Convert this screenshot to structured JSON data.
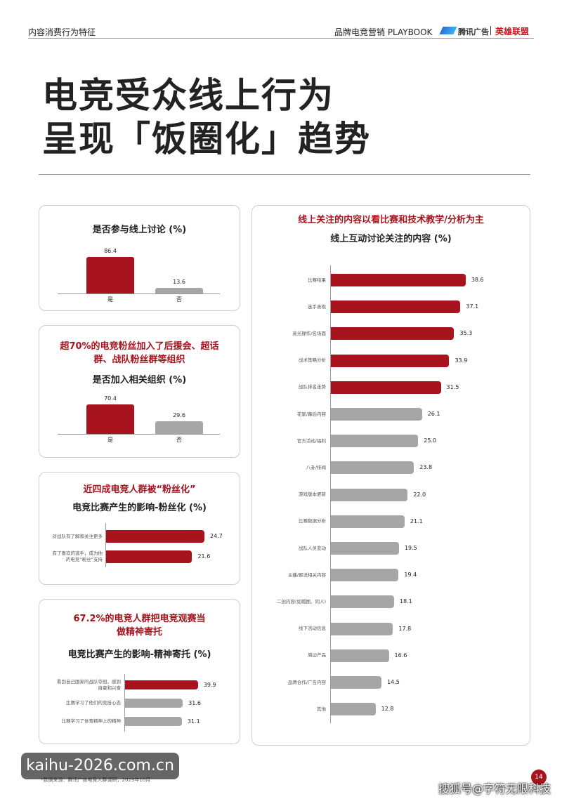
{
  "header": {
    "section": "内容消费行为特征",
    "brand": "品牌电竞营销 PLAYBOOK",
    "logo1": "腾讯广告",
    "logo2": "英雄联盟"
  },
  "title": [
    "电竞受众线上行为",
    "呈现「饭圈化」趋势"
  ],
  "chart_data": [
    {
      "type": "bar",
      "title": "是否参与线上讨论 (%)",
      "categories": [
        "是",
        "否"
      ],
      "values": [
        86.4,
        13.6
      ],
      "colors": [
        "#a8141e",
        "#a6a6a6"
      ]
    },
    {
      "type": "bar",
      "headline": "超70%的电竞粉丝加入了后援会、超话群、战队粉丝群等组织",
      "title": "是否加入相关组织 (%)",
      "categories": [
        "是",
        "否"
      ],
      "values": [
        70.4,
        29.6
      ],
      "colors": [
        "#a8141e",
        "#a6a6a6"
      ]
    },
    {
      "type": "barh",
      "headline": "近四成电竞人群被“粉丝化”",
      "title": "电竞比赛产生的影响-粉丝化 (%)",
      "categories": [
        "对战队有了解和关注更多",
        "有了喜欢的选手，成为他的电竞“粉丝”支持"
      ],
      "values": [
        24.7,
        21.6
      ],
      "colors": [
        "#a8141e",
        "#a8141e"
      ]
    },
    {
      "type": "barh",
      "headline": "67.2%的电竞人群把电竞观赛当做精神寄托",
      "title": "电竞比赛产生的影响-精神寄托 (%)",
      "categories": [
        "看到自己国家的战队夺冠，感到自豪和兴奋",
        "比赛学习了他们的竞技心态",
        "比赛学习了体育精神上的精神"
      ],
      "values": [
        39.9,
        31.6,
        31.1
      ],
      "colors": [
        "#a8141e",
        "#a6a6a6",
        "#a6a6a6"
      ]
    },
    {
      "type": "barh",
      "headline": "线上关注的内容以看比赛和技术教学/分析为主",
      "title": "线上互动讨论关注的内容 (%)",
      "categories": [
        "比赛结果",
        "选手表现",
        "高光操作/名场面",
        "战术策略分析",
        "战队排名走势",
        "花絮/幕后内容",
        "官方活动/福利",
        "八卦/绯闻",
        "游戏版本更新",
        "比赛数据分析",
        "战队人员变动",
        "主播/解说相关内容",
        "二创内容(如帽图、同人)",
        "线下活动信息",
        "周边产品",
        "品牌合作/广告内容",
        "其他"
      ],
      "values": [
        38.6,
        37.1,
        35.3,
        33.9,
        31.5,
        26.1,
        25.0,
        23.8,
        22.0,
        21.1,
        19.5,
        19.4,
        18.1,
        17.8,
        16.6,
        14.5,
        12.8
      ],
      "value_labels": [
        "38.6",
        "37.1",
        "35.3",
        "33.9",
        "31.5",
        "26.1",
        "25.0",
        "23.8",
        "22.0",
        "21.1",
        "19.5",
        "19.4",
        "18.1",
        "17.8",
        "16.6",
        "14.5",
        "12.8"
      ],
      "colors": [
        "#a8141e",
        "#a8141e",
        "#a8141e",
        "#a8141e",
        "#a8141e",
        "#a6a6a6",
        "#a6a6a6",
        "#a6a6a6",
        "#a6a6a6",
        "#a6a6a6",
        "#a6a6a6",
        "#a6a6a6",
        "#a6a6a6",
        "#a6a6a6",
        "#a6a6a6",
        "#a6a6a6",
        "#a6a6a6"
      ]
    }
  ],
  "footer": {
    "source": "*数据来源：腾讯广告电竞人群调研，2023年10月",
    "page": "14",
    "watermark": "kaihu-2026.com.cn",
    "credit": "搜狐号@字符无限科技"
  }
}
